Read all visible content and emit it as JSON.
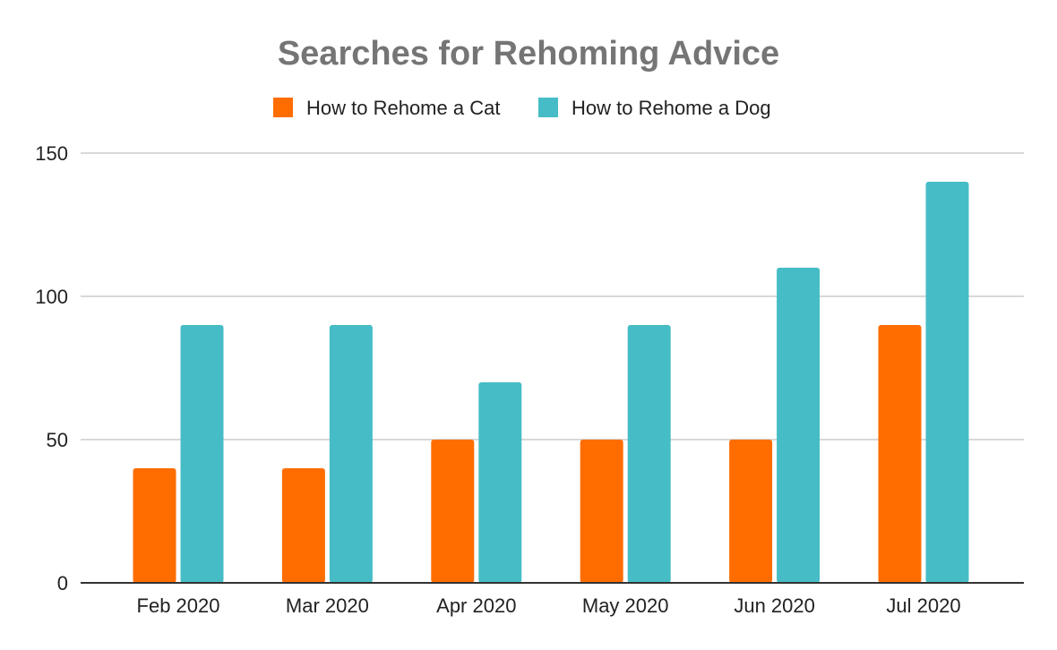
{
  "chart_data": {
    "type": "bar",
    "title": "Searches for Rehoming Advice",
    "categories": [
      "Feb 2020",
      "Mar 2020",
      "Apr 2020",
      "May 2020",
      "Jun 2020",
      "Jul 2020"
    ],
    "series": [
      {
        "name": "How to Rehome a Cat",
        "color": "#ff6d01",
        "values": [
          40,
          40,
          50,
          50,
          50,
          90
        ]
      },
      {
        "name": "How to Rehome a Dog",
        "color": "#46bdc6",
        "values": [
          90,
          90,
          70,
          90,
          110,
          140
        ]
      }
    ],
    "xlabel": "",
    "ylabel": "",
    "ylim": [
      0,
      150
    ],
    "yticks": [
      0,
      50,
      100,
      150
    ],
    "grid": true,
    "legend_position": "top-center"
  }
}
